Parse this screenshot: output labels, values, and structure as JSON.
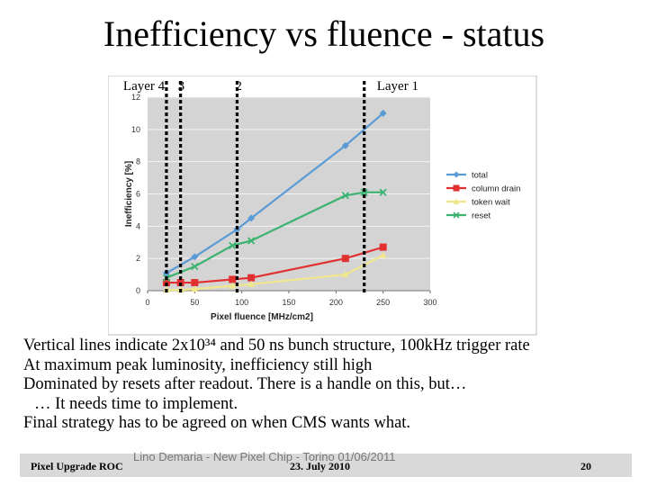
{
  "slide": {
    "title": "Inefficiency vs fluence - status",
    "bullets": [
      "Vertical lines indicate 2x10³⁴ and 50 ns bunch structure, 100kHz trigger rate",
      "At maximum peak luminosity, inefficiency still high",
      "Dominated by resets after readout. There is a handle on this, but…",
      "… It needs time to implement.",
      "Final strategy has to be agreed on when CMS wants what."
    ],
    "footer": {
      "left": "Pixel Upgrade ROC",
      "center": "23. July 2010",
      "right": "20",
      "overlay": "Lino Demaria - New Pixel Chip -  Torino 01/06/2011"
    }
  },
  "chart_data": {
    "type": "line",
    "title": "",
    "xlabel": "Pixel fluence [MHz/cm2]",
    "ylabel": "Inefficiency [%]",
    "xlim": [
      0,
      300
    ],
    "ylim": [
      0,
      12
    ],
    "xticks": [
      "0",
      "50",
      "100",
      "150",
      "200",
      "250",
      "300"
    ],
    "yticks": [
      "0",
      "2",
      "4",
      "6",
      "8",
      "10",
      "12"
    ],
    "grid": true,
    "legend_position": "right",
    "series": [
      {
        "name": "total",
        "color": "#5b9bd5",
        "marker": "diamond",
        "x": [
          20,
          50,
          95,
          110,
          210,
          250
        ],
        "y": [
          1.1,
          2.1,
          3.8,
          4.5,
          9.0,
          11.0
        ]
      },
      {
        "name": "column drain",
        "color": "#e03030",
        "marker": "square",
        "x": [
          20,
          35,
          50,
          90,
          110,
          210,
          250
        ],
        "y": [
          0.5,
          0.5,
          0.5,
          0.7,
          0.8,
          2.0,
          2.7
        ]
      },
      {
        "name": "token wait",
        "color": "#f0e68c",
        "marker": "triangle",
        "x": [
          20,
          35,
          50,
          90,
          110,
          210,
          250
        ],
        "y": [
          0.05,
          0.05,
          0.1,
          0.3,
          0.4,
          1.0,
          2.2
        ]
      },
      {
        "name": "reset",
        "color": "#3cb371",
        "marker": "x",
        "x": [
          20,
          50,
          90,
          110,
          210,
          230,
          250
        ],
        "y": [
          0.8,
          1.5,
          2.8,
          3.1,
          5.9,
          6.1,
          6.1
        ]
      }
    ],
    "vlines": [
      {
        "label": "Layer 4",
        "x": 20
      },
      {
        "label": "3",
        "x": 35
      },
      {
        "label": "2",
        "x": 95
      },
      {
        "label": "Layer 1",
        "x": 230
      }
    ]
  }
}
